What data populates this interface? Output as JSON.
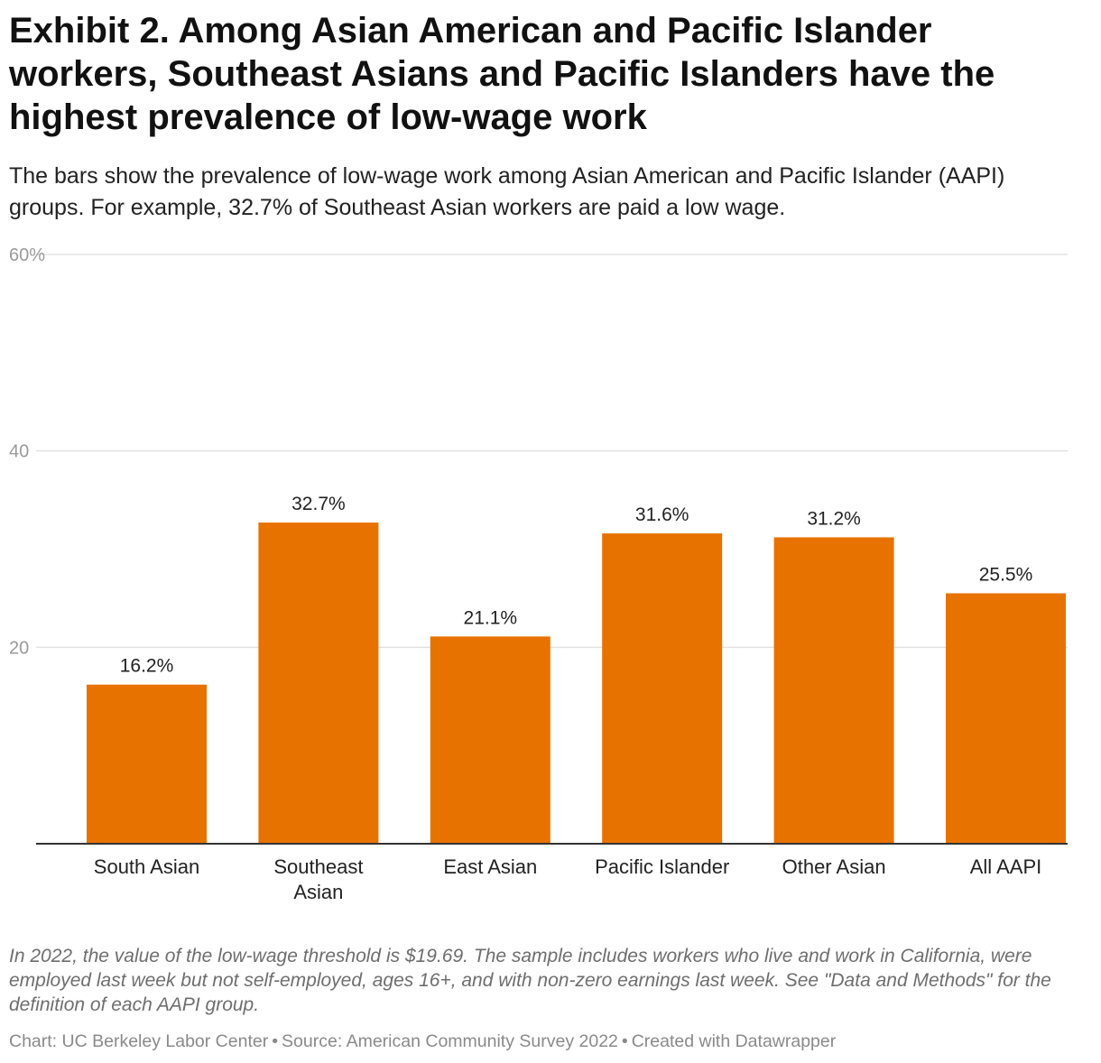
{
  "title": "Exhibit 2. Among Asian American and Pacific Islander workers, Southeast Asians and Pacific Islanders have the highest prevalence of low-wage work",
  "subtitle": "The bars show the prevalence of low-wage work among Asian American and Pacific Islander (AAPI) groups. For example, 32.7% of Southeast Asian workers are paid a low wage.",
  "notes": "In 2022, the value of the low-wage threshold is $19.69. The sample includes workers who live and work in California, were employed last week but not self-employed, ages 16+, and with non-zero earnings last week. See \"Data and Methods\" for the definition of each AAPI group.",
  "byline": {
    "chart": "Chart: UC Berkeley Labor Center",
    "source": "Source: American Community Survey 2022",
    "created": "Created with Datawrapper",
    "separator": "•"
  },
  "chart_data": {
    "type": "bar",
    "categories": [
      "South Asian",
      "Southeast Asian",
      "East Asian",
      "Pacific Islander",
      "Other Asian",
      "All AAPI"
    ],
    "category_lines": [
      [
        "South Asian"
      ],
      [
        "Southeast",
        "Asian"
      ],
      [
        "East Asian"
      ],
      [
        "Pacific Islander"
      ],
      [
        "Other Asian"
      ],
      [
        "All AAPI"
      ]
    ],
    "values": [
      16.2,
      32.7,
      21.1,
      31.6,
      31.2,
      25.5
    ],
    "value_labels": [
      "16.2%",
      "32.7%",
      "21.1%",
      "31.6%",
      "31.2%",
      "25.5%"
    ],
    "ylim": [
      0,
      60
    ],
    "yticks": [
      20,
      40,
      60
    ],
    "ytick_labels": [
      "20",
      "40",
      "60%"
    ],
    "grid": true,
    "colors": {
      "bar": "#e87200",
      "grid": "#e2e2e2",
      "axis": "#333333",
      "tick_label": "#9a9a9a",
      "text": "#222222"
    }
  }
}
